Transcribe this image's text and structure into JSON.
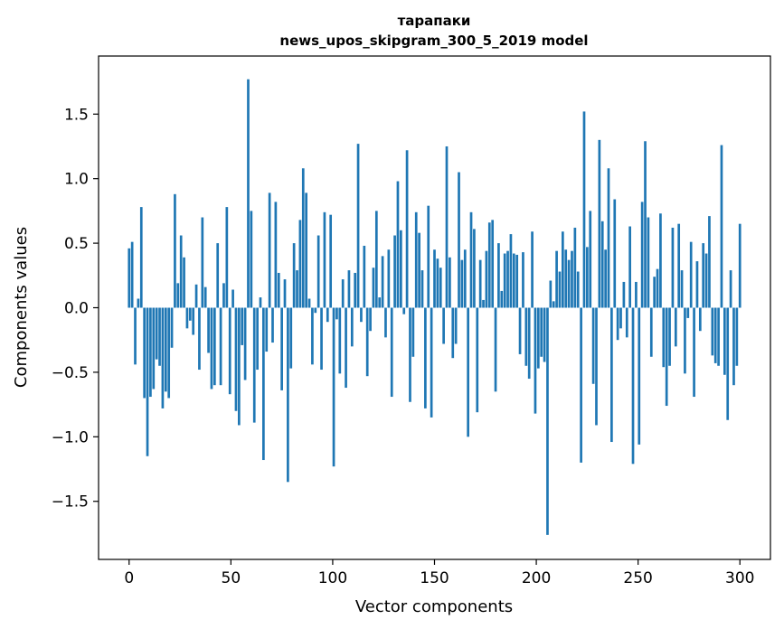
{
  "chart_data": {
    "type": "bar",
    "title_line1": "тарапаки",
    "title_line2": "news_upos_skipgram_300_5_2019 model",
    "xlabel": "Vector components",
    "ylabel": "Components values",
    "xlim": [
      -15,
      315
    ],
    "ylim": [
      -1.95,
      1.95
    ],
    "xticks": [
      0,
      50,
      100,
      150,
      200,
      250,
      300
    ],
    "yticks": [
      -1.5,
      -1.0,
      -0.5,
      0.0,
      0.5,
      1.0,
      1.5
    ],
    "xtick_labels": [
      "0",
      "50",
      "100",
      "150",
      "200",
      "250",
      "300"
    ],
    "ytick_labels": [
      "−1.5",
      "−1.0",
      "−0.5",
      "0.0",
      "0.5",
      "1.0",
      "1.5"
    ],
    "bar_color": "#1f77b4",
    "grid": false,
    "values": [
      0.46,
      0.51,
      -0.44,
      0.07,
      0.78,
      -0.7,
      -1.15,
      -0.69,
      -0.63,
      -0.4,
      -0.45,
      -0.78,
      -0.65,
      -0.7,
      -0.31,
      0.88,
      0.19,
      0.56,
      0.39,
      -0.16,
      -0.1,
      -0.21,
      0.18,
      -0.48,
      0.7,
      0.16,
      -0.35,
      -0.63,
      -0.6,
      0.5,
      -0.6,
      0.19,
      0.78,
      -0.67,
      0.14,
      -0.8,
      -0.91,
      -0.29,
      -0.56,
      1.77,
      0.75,
      -0.89,
      -0.48,
      0.08,
      -1.18,
      -0.34,
      0.89,
      -0.27,
      0.82,
      0.27,
      -0.64,
      0.22,
      -1.35,
      -0.47,
      0.5,
      0.29,
      0.68,
      1.08,
      0.89,
      0.07,
      -0.44,
      -0.04,
      0.56,
      -0.48,
      0.74,
      -0.11,
      0.72,
      -1.23,
      -0.09,
      -0.51,
      0.22,
      -0.62,
      0.29,
      -0.3,
      0.27,
      1.27,
      -0.11,
      0.48,
      -0.53,
      -0.18,
      0.31,
      0.75,
      0.08,
      0.4,
      -0.23,
      0.45,
      -0.69,
      0.56,
      0.98,
      0.6,
      -0.05,
      1.22,
      -0.73,
      -0.38,
      0.74,
      0.58,
      0.29,
      -0.78,
      0.79,
      -0.85,
      0.45,
      0.38,
      0.31,
      -0.28,
      1.25,
      0.39,
      -0.39,
      -0.28,
      1.05,
      0.37,
      0.45,
      -1.0,
      0.74,
      0.61,
      -0.81,
      0.37,
      0.06,
      0.44,
      0.66,
      0.68,
      -0.65,
      0.5,
      0.13,
      0.42,
      0.44,
      0.57,
      0.42,
      0.41,
      -0.36,
      0.43,
      -0.45,
      -0.55,
      0.59,
      -0.82,
      -0.47,
      -0.38,
      -0.42,
      -1.76,
      0.21,
      0.05,
      0.44,
      0.28,
      0.59,
      0.45,
      0.37,
      0.44,
      0.62,
      0.28,
      -1.2,
      1.52,
      0.47,
      0.75,
      -0.59,
      -0.91,
      1.3,
      0.67,
      0.45,
      1.08,
      -1.04,
      0.84,
      -0.25,
      -0.16,
      0.2,
      -0.23,
      0.63,
      -1.21,
      0.2,
      -1.06,
      0.82,
      1.29,
      0.7,
      -0.38,
      0.24,
      0.3,
      0.73,
      -0.46,
      -0.76,
      -0.45,
      0.62,
      -0.3,
      0.65,
      0.29,
      -0.51,
      -0.08,
      0.51,
      -0.69,
      0.36,
      -0.18,
      0.5,
      0.42,
      0.71,
      -0.37,
      -0.43,
      -0.45,
      1.26,
      -0.52,
      -0.87,
      0.29,
      -0.6,
      -0.45,
      0.65
    ]
  }
}
